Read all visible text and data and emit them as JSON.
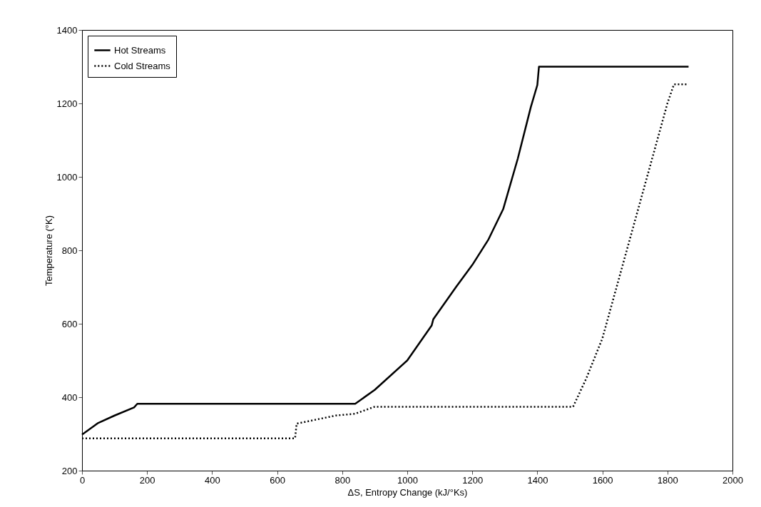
{
  "chart_data": {
    "type": "line",
    "xlabel": "ΔS, Entropy Change (kJ/°Ks)",
    "ylabel": "Temperature (°K)",
    "xlim": [
      0,
      2000
    ],
    "ylim": [
      200,
      1400
    ],
    "xticks": [
      0,
      200,
      400,
      600,
      800,
      1000,
      1200,
      1400,
      1600,
      1800,
      2000
    ],
    "yticks": [
      200,
      400,
      600,
      800,
      1000,
      1200,
      1400
    ],
    "grid": false,
    "legend": "top left",
    "marker": "none",
    "series": [
      {
        "name": "Hot Streams",
        "color": "#000000",
        "line_style": "solid",
        "x": [
          0,
          50,
          100,
          160,
          170,
          840,
          900,
          1000,
          1075,
          1080,
          1150,
          1200,
          1250,
          1295,
          1340,
          1380,
          1400,
          1405,
          1865
        ],
        "values": [
          298,
          330,
          350,
          372,
          382,
          382,
          420,
          500,
          595,
          612,
          700,
          760,
          830,
          912,
          1050,
          1190,
          1250,
          1300,
          1300
        ]
      },
      {
        "name": "Cold Streams",
        "color": "#000000",
        "line_style": "dotted",
        "x": [
          0,
          655,
          660,
          780,
          840,
          900,
          1510,
          1550,
          1600,
          1650,
          1700,
          1750,
          1800,
          1820,
          1865
        ],
        "values": [
          288,
          288,
          328,
          350,
          355,
          374,
          374,
          450,
          560,
          720,
          880,
          1040,
          1200,
          1252,
          1252
        ]
      }
    ]
  }
}
